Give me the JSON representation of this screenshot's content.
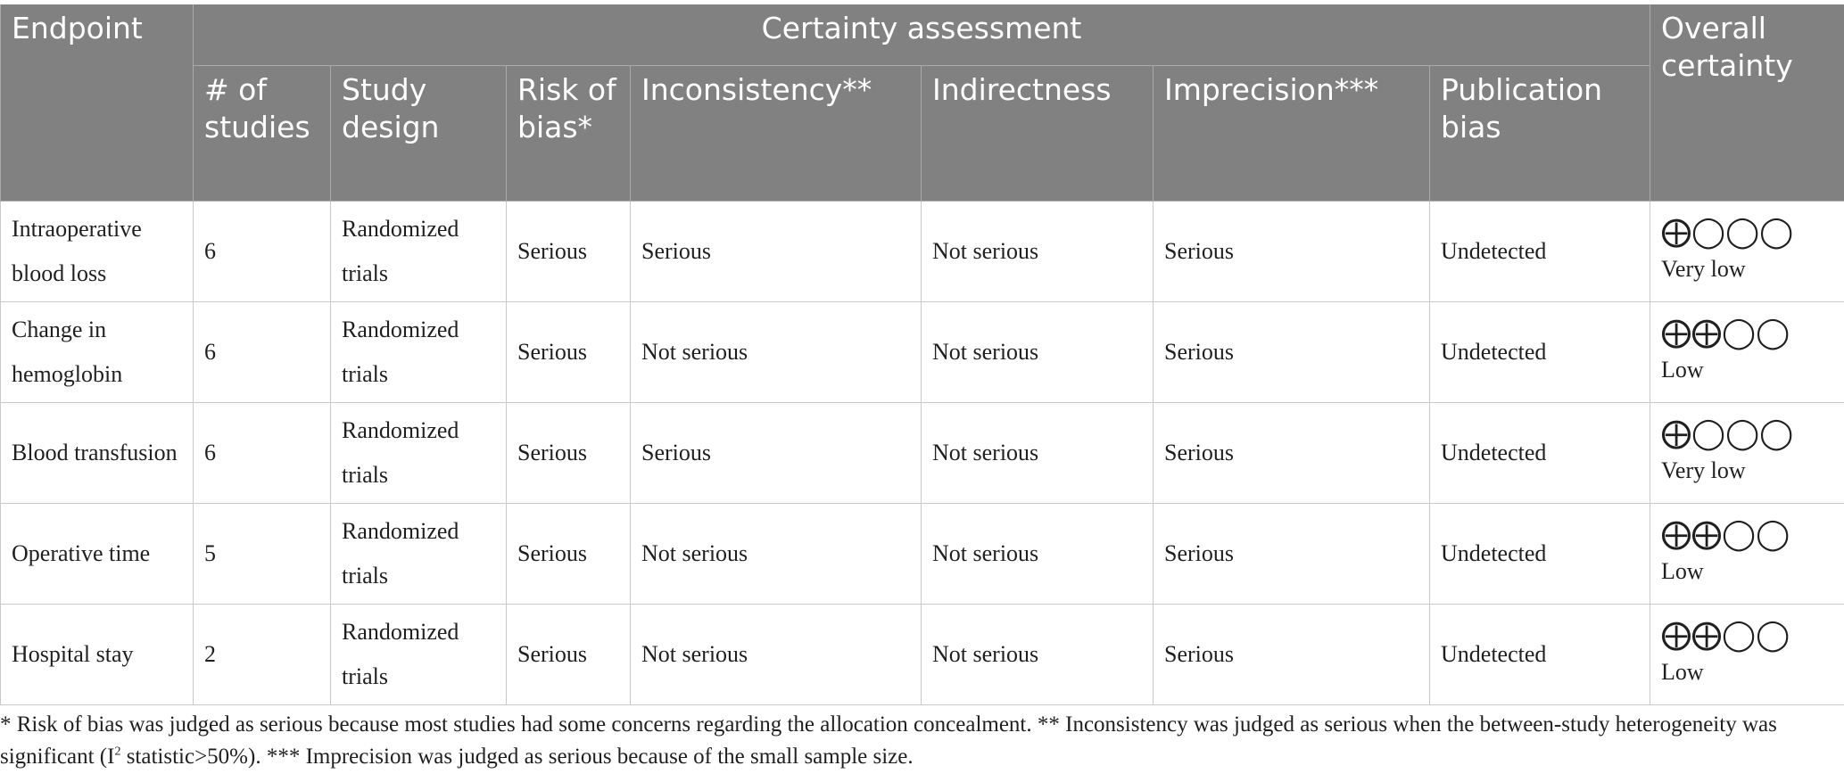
{
  "header": {
    "endpoint": "Endpoint",
    "certainty_assessment": "Certainty assessment",
    "overall_certainty": "Overall certainty",
    "num_studies": "# of studies",
    "study_design": "Study design",
    "risk_of_bias": "Risk of bias*",
    "inconsistency": "Inconsistency**",
    "indirectness": "Indirectness",
    "imprecision": "Imprecision***",
    "publication_bias": "Publication bias"
  },
  "rows": [
    {
      "endpoint": "Intraoperative blood loss",
      "num_studies": "6",
      "study_design": "Randomized trials",
      "risk_of_bias": "Serious",
      "inconsistency": "Serious",
      "indirectness": "Not serious",
      "imprecision": "Serious",
      "publication_bias": "Undetected",
      "certainty_symbols": "⨁◯◯◯",
      "certainty_label": "Very low"
    },
    {
      "endpoint": "Change in hemoglobin",
      "num_studies": "6",
      "study_design": "Randomized trials",
      "risk_of_bias": "Serious",
      "inconsistency": "Not serious",
      "indirectness": "Not serious",
      "imprecision": "Serious",
      "publication_bias": "Undetected",
      "certainty_symbols": "⨁⨁◯◯",
      "certainty_label": "Low"
    },
    {
      "endpoint": "Blood transfusion",
      "num_studies": "6",
      "study_design": "Randomized trials",
      "risk_of_bias": "Serious",
      "inconsistency": "Serious",
      "indirectness": "Not serious",
      "imprecision": "Serious",
      "publication_bias": "Undetected",
      "certainty_symbols": "⨁◯◯◯",
      "certainty_label": "Very low"
    },
    {
      "endpoint": "Operative time",
      "num_studies": "5",
      "study_design": "Randomized trials",
      "risk_of_bias": "Serious",
      "inconsistency": "Not serious",
      "indirectness": "Not serious",
      "imprecision": "Serious",
      "publication_bias": "Undetected",
      "certainty_symbols": "⨁⨁◯◯",
      "certainty_label": "Low"
    },
    {
      "endpoint": "Hospital stay",
      "num_studies": "2",
      "study_design": "Randomized trials",
      "risk_of_bias": "Serious",
      "inconsistency": "Not serious",
      "indirectness": "Not serious",
      "imprecision": "Serious",
      "publication_bias": "Undetected",
      "certainty_symbols": "⨁⨁◯◯",
      "certainty_label": "Low"
    }
  ],
  "footnote": {
    "part1": "* Risk of bias was judged as serious because most studies had some concerns regarding the allocation concealment. ** Inconsistency was judged as serious when the between-study heterogeneity was significant (I",
    "sup": "2",
    "part2": " statistic>50%). *** Imprecision was judged as serious because of the small sample size."
  },
  "colors": {
    "header_bg": "#808180",
    "header_text": "#ffffff",
    "grid_line": "#c9c9c9"
  }
}
